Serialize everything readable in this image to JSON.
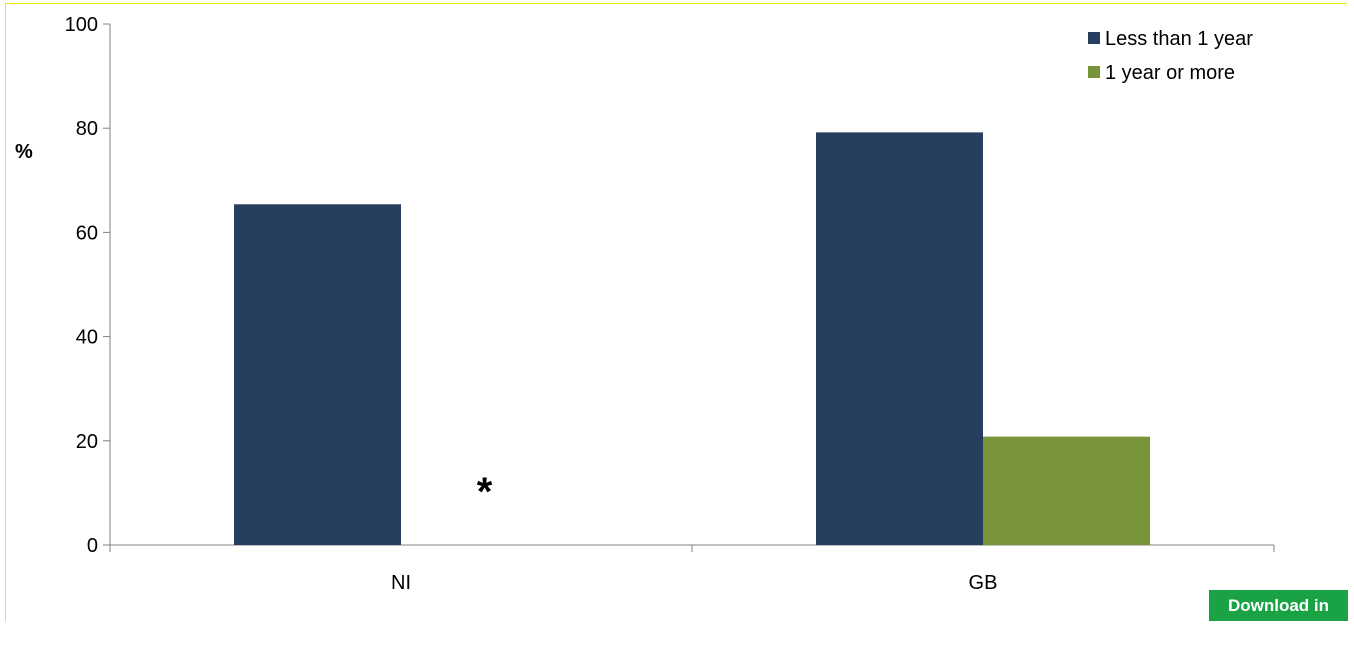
{
  "chart_data": {
    "type": "bar",
    "categories": [
      "NI",
      "GB"
    ],
    "series": [
      {
        "name": "Less than 1 year",
        "values": [
          65.4,
          79.2
        ],
        "color": "#263f5e"
      },
      {
        "name": "1 year or more",
        "values": [
          null,
          20.8
        ],
        "color": "#789439"
      }
    ],
    "ylabel": "%",
    "ylim": [
      0,
      100
    ],
    "yticks": [
      0,
      20,
      40,
      60,
      80,
      100
    ],
    "legend_position": "top-right",
    "grid": false,
    "annotations": [
      {
        "text": "*",
        "category": "NI",
        "series": "1 year or more"
      }
    ]
  },
  "download_button": {
    "label": "Download in excel"
  }
}
